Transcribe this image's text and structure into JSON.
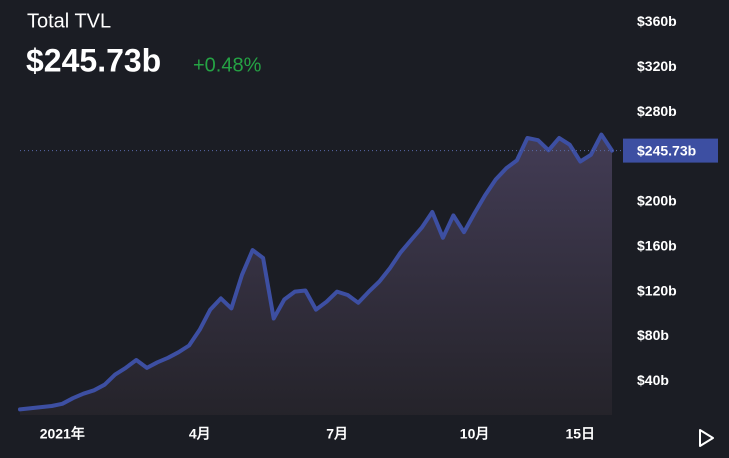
{
  "chart_data": {
    "type": "line",
    "title": "Total TVL",
    "total_value": "$245.73b",
    "change": "+0.48%",
    "color": "#3d4fa2",
    "categories": [
      null,
      null,
      null,
      null,
      "2021年",
      null,
      null,
      null,
      null,
      null,
      null,
      null,
      null,
      null,
      null,
      null,
      null,
      "4月",
      null,
      null,
      null,
      null,
      null,
      null,
      null,
      null,
      null,
      null,
      null,
      null,
      "7月",
      null,
      null,
      null,
      null,
      null,
      null,
      null,
      null,
      null,
      null,
      null,
      null,
      "10月",
      null,
      null,
      null,
      null,
      null,
      null,
      null,
      null,
      null,
      "15日",
      null,
      null,
      null
    ],
    "values": [
      15,
      16,
      17,
      18,
      20,
      25,
      29,
      32,
      37,
      46,
      52,
      59,
      52,
      57,
      61,
      66,
      72,
      86,
      104,
      114,
      105,
      135,
      157,
      150,
      96,
      113,
      120,
      121,
      104,
      111,
      120,
      117,
      110,
      120,
      129,
      141,
      155,
      166,
      177,
      191,
      168,
      188,
      173,
      190,
      206,
      220,
      230,
      237,
      257,
      255,
      246,
      257,
      251,
      236,
      242,
      260,
      245.73
    ],
    "current": {
      "value": 245.73,
      "label": "$245.73b"
    },
    "ylim": [
      10,
      380
    ],
    "yticks": [
      {
        "value": 40,
        "label": "$40b"
      },
      {
        "value": 80,
        "label": "$80b"
      },
      {
        "value": 120,
        "label": "$120b"
      },
      {
        "value": 160,
        "label": "$160b"
      },
      {
        "value": 200,
        "label": "$200b"
      },
      {
        "value": 280,
        "label": "$280b"
      },
      {
        "value": 320,
        "label": "$320b"
      },
      {
        "value": 360,
        "label": "$360b"
      }
    ],
    "grid": false
  }
}
